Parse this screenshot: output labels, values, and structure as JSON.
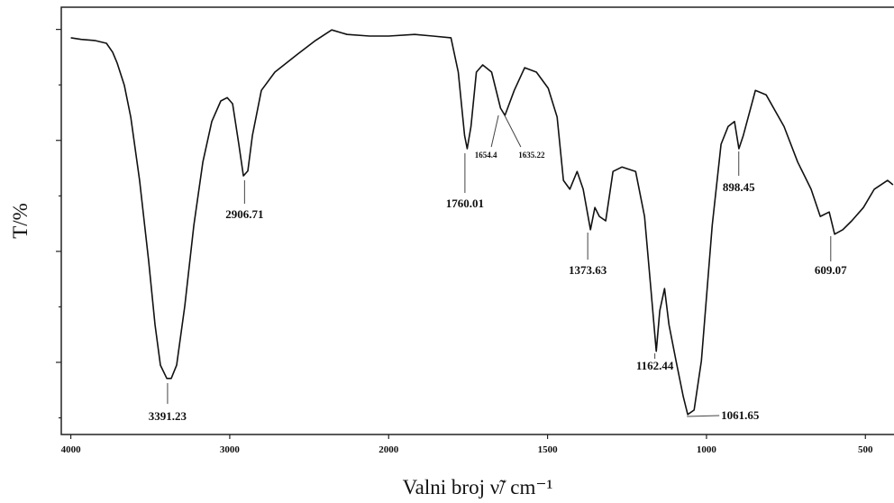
{
  "chart_data": {
    "type": "line",
    "xlabel": "Valni broj ν̃/ cm⁻¹",
    "ylabel": "T/%",
    "color": "#111111",
    "xlim": [
      4060,
      410
    ],
    "xscale_break": 2000,
    "xscale_ratio": 2,
    "xticks": [
      4000,
      3000,
      2000,
      1500,
      1000,
      500
    ],
    "ylim": [
      7,
      84
    ],
    "yticks": [
      10,
      20,
      30,
      40,
      50,
      60,
      70,
      80
    ],
    "x": [
      4000,
      3935,
      3850,
      3776,
      3737,
      3708,
      3663,
      3623,
      3567,
      3510,
      3470,
      3436,
      3396,
      3368,
      3334,
      3283,
      3226,
      3169,
      3113,
      3056,
      3016,
      2982,
      2943,
      2914,
      2886,
      2857,
      2801,
      2716,
      2574,
      2460,
      2358,
      2262,
      2120,
      2000,
      1918,
      1861,
      1804,
      1781,
      1761,
      1753,
      1741,
      1724,
      1704,
      1676,
      1648,
      1634,
      1605,
      1572,
      1535,
      1498,
      1470,
      1450,
      1430,
      1407,
      1388,
      1365,
      1351,
      1337,
      1317,
      1294,
      1266,
      1223,
      1195,
      1175,
      1158,
      1147,
      1132,
      1118,
      1096,
      1073,
      1059,
      1039,
      1016,
      982,
      954,
      932,
      912,
      898,
      884,
      846,
      812,
      756,
      713,
      671,
      642,
      614,
      597,
      571,
      543,
      506,
      472,
      430,
      413
    ],
    "values": [
      78.5,
      78.2,
      78.0,
      77.5,
      75.9,
      73.9,
      69.9,
      64.2,
      52.8,
      38.2,
      26.8,
      19.5,
      17.1,
      17.1,
      19.5,
      30.1,
      44.7,
      56.1,
      63.4,
      67.1,
      67.7,
      66.6,
      59.3,
      53.6,
      54.5,
      60.9,
      69.0,
      72.3,
      75.5,
      78.0,
      79.9,
      79.1,
      78.8,
      78.8,
      79.1,
      78.8,
      78.5,
      72.3,
      60.9,
      58.5,
      62.5,
      72.3,
      73.6,
      72.3,
      65.8,
      64.5,
      69.0,
      73.1,
      72.3,
      69.4,
      64.2,
      52.8,
      51.2,
      54.4,
      51.2,
      43.9,
      47.9,
      46.3,
      45.5,
      54.4,
      55.2,
      54.4,
      46.3,
      33.3,
      22.0,
      29.3,
      33.3,
      26.8,
      20.3,
      13.8,
      10.6,
      11.4,
      20.3,
      44.7,
      59.3,
      62.5,
      63.4,
      58.5,
      60.9,
      69.0,
      68.2,
      62.5,
      56.1,
      51.2,
      46.3,
      47.1,
      43.1,
      43.9,
      45.5,
      47.9,
      51.2,
      52.8,
      52.0
    ],
    "annotations": [
      {
        "text": "3391.23",
        "x": 3391.23
      },
      {
        "text": "2906.71",
        "x": 2906.71
      },
      {
        "text": "1760.01",
        "x": 1760.01
      },
      {
        "text": "1654.4",
        "x": 1654.4
      },
      {
        "text": "1635.22",
        "x": 1635.22
      },
      {
        "text": "1373.63",
        "x": 1373.63
      },
      {
        "text": "1162.44",
        "x": 1162.44
      },
      {
        "text": "1061.65",
        "x": 1061.65
      },
      {
        "text": "898.45",
        "x": 898.45
      },
      {
        "text": "609.07",
        "x": 609.07
      }
    ]
  }
}
